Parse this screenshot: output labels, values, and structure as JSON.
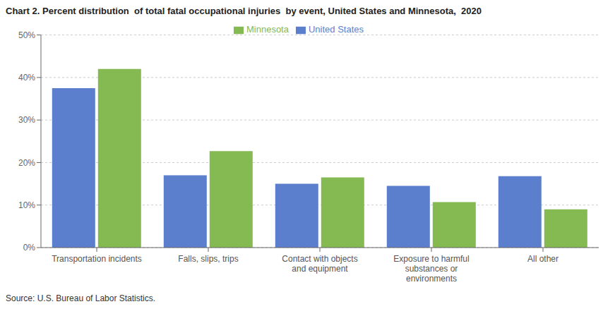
{
  "chart_data": {
    "type": "bar",
    "title": "Chart 2. Percent distribution  of total fatal occupational injuries  by event, United States and Minnesota,  2020",
    "categories": [
      "Transportation incidents",
      "Falls, slips, trips",
      "Contact with objects\nand equipment",
      "Exposure to harmful\nsubstances or\nenvironments",
      "All other"
    ],
    "series": [
      {
        "name": "United States",
        "color": "#5b7fcc",
        "values": [
          37.5,
          17.0,
          15.0,
          14.5,
          16.8
        ]
      },
      {
        "name": "Minnesota",
        "color": "#85b951",
        "values": [
          42.0,
          22.7,
          16.5,
          10.7,
          9.0
        ]
      }
    ],
    "ylim": [
      0,
      50
    ],
    "yticks": [
      {
        "value": 0,
        "label": "0%"
      },
      {
        "value": 10,
        "label": "10%"
      },
      {
        "value": 20,
        "label": "20%"
      },
      {
        "value": 30,
        "label": "30%"
      },
      {
        "value": 40,
        "label": "40%"
      },
      {
        "value": 50,
        "label": "50%"
      }
    ],
    "grid": true,
    "legend": "top",
    "source": "Source: U.S. Bureau of Labor Statistics."
  }
}
